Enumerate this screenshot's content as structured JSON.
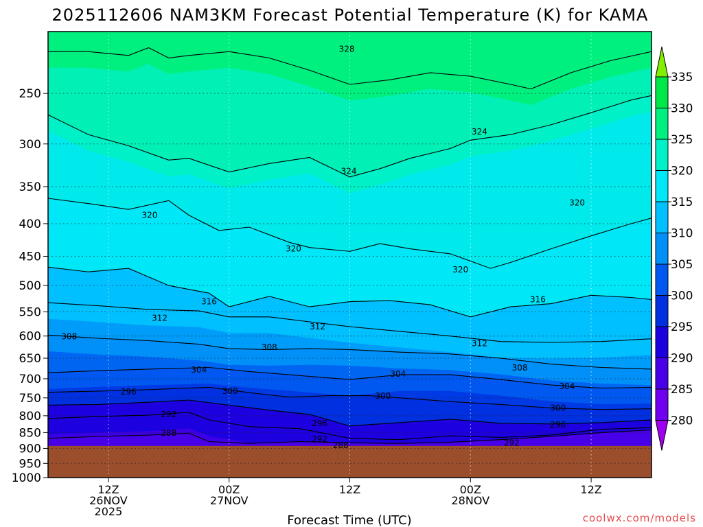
{
  "chart_data": {
    "type": "heatmap",
    "title": "2025112606 NAM3KM Forecast Potential Temperature (K) for KAMA",
    "xlabel": "Forecast Time (UTC)",
    "ylabel": "",
    "y_axis": {
      "scale": "log-pressure",
      "reversed": true,
      "ylim": [
        1000,
        200
      ],
      "ticks": [
        250,
        300,
        350,
        400,
        450,
        500,
        550,
        600,
        650,
        700,
        750,
        800,
        850,
        900,
        950,
        1000
      ]
    },
    "x_axis": {
      "units": "forecast hours from 2025112606",
      "xlim": [
        0,
        60
      ],
      "ticks": [
        {
          "hour": 6,
          "lines": [
            "12Z",
            "26NOV",
            "2025"
          ]
        },
        {
          "hour": 18,
          "lines": [
            "00Z",
            "27NOV"
          ]
        },
        {
          "hour": 30,
          "lines": [
            "12Z"
          ]
        },
        {
          "hour": 42,
          "lines": [
            "00Z",
            "28NOV"
          ]
        },
        {
          "hour": 54,
          "lines": [
            "12Z"
          ]
        }
      ]
    },
    "colorbar": {
      "levels": [
        280,
        285,
        290,
        295,
        300,
        305,
        310,
        315,
        320,
        325,
        330,
        335
      ],
      "colors": [
        "#a000f0",
        "#7000f0",
        "#4800e8",
        "#1c00e0",
        "#0030e0",
        "#0058f0",
        "#0090f8",
        "#00c0ff",
        "#00e8f8",
        "#00f0c8",
        "#00f080",
        "#00e848",
        "#80f000"
      ]
    },
    "series": [
      {
        "name": "288",
        "values": [
          [
            0,
            868
          ],
          [
            5,
            862
          ],
          [
            10,
            858
          ],
          [
            14,
            852
          ],
          [
            16,
            878
          ],
          [
            20,
            884
          ],
          [
            25,
            878
          ],
          [
            30,
            882
          ],
          [
            35,
            884
          ],
          [
            40,
            880
          ],
          [
            45,
            872
          ],
          [
            50,
            862
          ],
          [
            55,
            850
          ],
          [
            60,
            842
          ]
        ]
      },
      {
        "name": "292",
        "values": [
          [
            0,
            808
          ],
          [
            5,
            802
          ],
          [
            10,
            798
          ],
          [
            14,
            790
          ],
          [
            16,
            812
          ],
          [
            20,
            832
          ],
          [
            25,
            838
          ],
          [
            30,
            868
          ],
          [
            35,
            872
          ],
          [
            40,
            860
          ],
          [
            45,
            865
          ],
          [
            50,
            858
          ],
          [
            55,
            840
          ],
          [
            60,
            835
          ]
        ]
      },
      {
        "name": "296",
        "values": [
          [
            0,
            770
          ],
          [
            5,
            768
          ],
          [
            10,
            762
          ],
          [
            14,
            756
          ],
          [
            18,
            770
          ],
          [
            22,
            784
          ],
          [
            26,
            796
          ],
          [
            30,
            830
          ],
          [
            34,
            822
          ],
          [
            40,
            810
          ],
          [
            45,
            822
          ],
          [
            50,
            824
          ],
          [
            55,
            820
          ],
          [
            60,
            812
          ]
        ]
      },
      {
        "name": "300",
        "values": [
          [
            0,
            735
          ],
          [
            5,
            732
          ],
          [
            10,
            728
          ],
          [
            16,
            722
          ],
          [
            20,
            736
          ],
          [
            24,
            748
          ],
          [
            28,
            744
          ],
          [
            32,
            744
          ],
          [
            36,
            752
          ],
          [
            40,
            760
          ],
          [
            45,
            768
          ],
          [
            50,
            778
          ],
          [
            55,
            782
          ],
          [
            60,
            780
          ]
        ]
      },
      {
        "name": "304",
        "values": [
          [
            0,
            685
          ],
          [
            5,
            680
          ],
          [
            10,
            676
          ],
          [
            16,
            672
          ],
          [
            20,
            682
          ],
          [
            25,
            692
          ],
          [
            30,
            702
          ],
          [
            35,
            690
          ],
          [
            40,
            690
          ],
          [
            45,
            702
          ],
          [
            50,
            716
          ],
          [
            55,
            724
          ],
          [
            60,
            722
          ]
        ]
      },
      {
        "name": "308",
        "values": [
          [
            0,
            598
          ],
          [
            5,
            605
          ],
          [
            10,
            610
          ],
          [
            15,
            618
          ],
          [
            18,
            628
          ],
          [
            22,
            630
          ],
          [
            26,
            628
          ],
          [
            30,
            630
          ],
          [
            35,
            636
          ],
          [
            40,
            640
          ],
          [
            45,
            650
          ],
          [
            50,
            664
          ],
          [
            55,
            672
          ],
          [
            60,
            676
          ]
        ]
      },
      {
        "name": "312",
        "values": [
          [
            0,
            532
          ],
          [
            5,
            538
          ],
          [
            10,
            545
          ],
          [
            15,
            548
          ],
          [
            18,
            560
          ],
          [
            22,
            560
          ],
          [
            26,
            570
          ],
          [
            30,
            580
          ],
          [
            35,
            590
          ],
          [
            40,
            600
          ],
          [
            45,
            612
          ],
          [
            50,
            614
          ],
          [
            55,
            612
          ],
          [
            60,
            606
          ]
        ]
      },
      {
        "name": "316",
        "values": [
          [
            0,
            468
          ],
          [
            4,
            476
          ],
          [
            8,
            470
          ],
          [
            12,
            500
          ],
          [
            16,
            514
          ],
          [
            18,
            540
          ],
          [
            22,
            520
          ],
          [
            26,
            540
          ],
          [
            30,
            530
          ],
          [
            34,
            528
          ],
          [
            38,
            536
          ],
          [
            42,
            560
          ],
          [
            46,
            540
          ],
          [
            50,
            534
          ],
          [
            54,
            518
          ],
          [
            58,
            522
          ],
          [
            60,
            526
          ]
        ]
      },
      {
        "name": "320",
        "values": [
          [
            0,
            365
          ],
          [
            4,
            372
          ],
          [
            8,
            380
          ],
          [
            12,
            368
          ],
          [
            14,
            388
          ],
          [
            17,
            410
          ],
          [
            20,
            405
          ],
          [
            24,
            428
          ],
          [
            26,
            436
          ],
          [
            30,
            442
          ],
          [
            33,
            430
          ],
          [
            36,
            438
          ],
          [
            40,
            446
          ],
          [
            44,
            470
          ],
          [
            46,
            460
          ],
          [
            50,
            438
          ],
          [
            54,
            418
          ],
          [
            58,
            400
          ],
          [
            60,
            392
          ]
        ]
      },
      {
        "name": "324",
        "values": [
          [
            0,
            270
          ],
          [
            4,
            290
          ],
          [
            8,
            302
          ],
          [
            12,
            318
          ],
          [
            14,
            316
          ],
          [
            18,
            332
          ],
          [
            22,
            322
          ],
          [
            26,
            315
          ],
          [
            30,
            338
          ],
          [
            33,
            328
          ],
          [
            36,
            316
          ],
          [
            40,
            305
          ],
          [
            42,
            296
          ],
          [
            46,
            290
          ],
          [
            50,
            280
          ],
          [
            54,
            268
          ],
          [
            58,
            256
          ],
          [
            60,
            252
          ]
        ]
      },
      {
        "name": "328",
        "values": [
          [
            0,
            215
          ],
          [
            4,
            215
          ],
          [
            8,
            218
          ],
          [
            10,
            212
          ],
          [
            12,
            220
          ],
          [
            14,
            218
          ],
          [
            18,
            215
          ],
          [
            22,
            220
          ],
          [
            26,
            230
          ],
          [
            30,
            242
          ],
          [
            34,
            238
          ],
          [
            38,
            232
          ],
          [
            42,
            235
          ],
          [
            46,
            242
          ],
          [
            48,
            246
          ],
          [
            52,
            232
          ],
          [
            56,
            222
          ],
          [
            60,
            215
          ]
        ]
      }
    ],
    "contour_labels": [
      {
        "text": "328",
        "hour": 29.7,
        "p": 213
      },
      {
        "text": "324",
        "hour": 42.9,
        "p": 287
      },
      {
        "text": "324",
        "hour": 29.9,
        "p": 331
      },
      {
        "text": "320",
        "hour": 52.6,
        "p": 371
      },
      {
        "text": "320",
        "hour": 10.1,
        "p": 388
      },
      {
        "text": "320",
        "hour": 24.4,
        "p": 438
      },
      {
        "text": "320",
        "hour": 41.0,
        "p": 472
      },
      {
        "text": "316",
        "hour": 16.0,
        "p": 530
      },
      {
        "text": "316",
        "hour": 48.7,
        "p": 526
      },
      {
        "text": "312",
        "hour": 11.1,
        "p": 562
      },
      {
        "text": "312",
        "hour": 26.8,
        "p": 580
      },
      {
        "text": "312",
        "hour": 42.9,
        "p": 616
      },
      {
        "text": "308",
        "hour": 2.1,
        "p": 601
      },
      {
        "text": "308",
        "hour": 22.0,
        "p": 625
      },
      {
        "text": "308",
        "hour": 46.9,
        "p": 673
      },
      {
        "text": "304",
        "hour": 15.0,
        "p": 678
      },
      {
        "text": "304",
        "hour": 34.8,
        "p": 688
      },
      {
        "text": "304",
        "hour": 51.6,
        "p": 719
      },
      {
        "text": "300",
        "hour": 18.1,
        "p": 732
      },
      {
        "text": "300",
        "hour": 33.3,
        "p": 745
      },
      {
        "text": "300",
        "hour": 50.7,
        "p": 778
      },
      {
        "text": "296",
        "hour": 8.0,
        "p": 734
      },
      {
        "text": "296",
        "hour": 27.0,
        "p": 822
      },
      {
        "text": "296",
        "hour": 50.7,
        "p": 826
      },
      {
        "text": "292",
        "hour": 12.0,
        "p": 796
      },
      {
        "text": "292",
        "hour": 27.0,
        "p": 870
      },
      {
        "text": "292",
        "hour": 46.1,
        "p": 882
      },
      {
        "text": "288",
        "hour": 12.0,
        "p": 851
      },
      {
        "text": "288",
        "hour": 29.1,
        "p": 890
      }
    ],
    "ground": {
      "top_pressure": 892,
      "color": "#9b4e2c"
    },
    "grid": true
  },
  "credit": "coolwx.com/models"
}
